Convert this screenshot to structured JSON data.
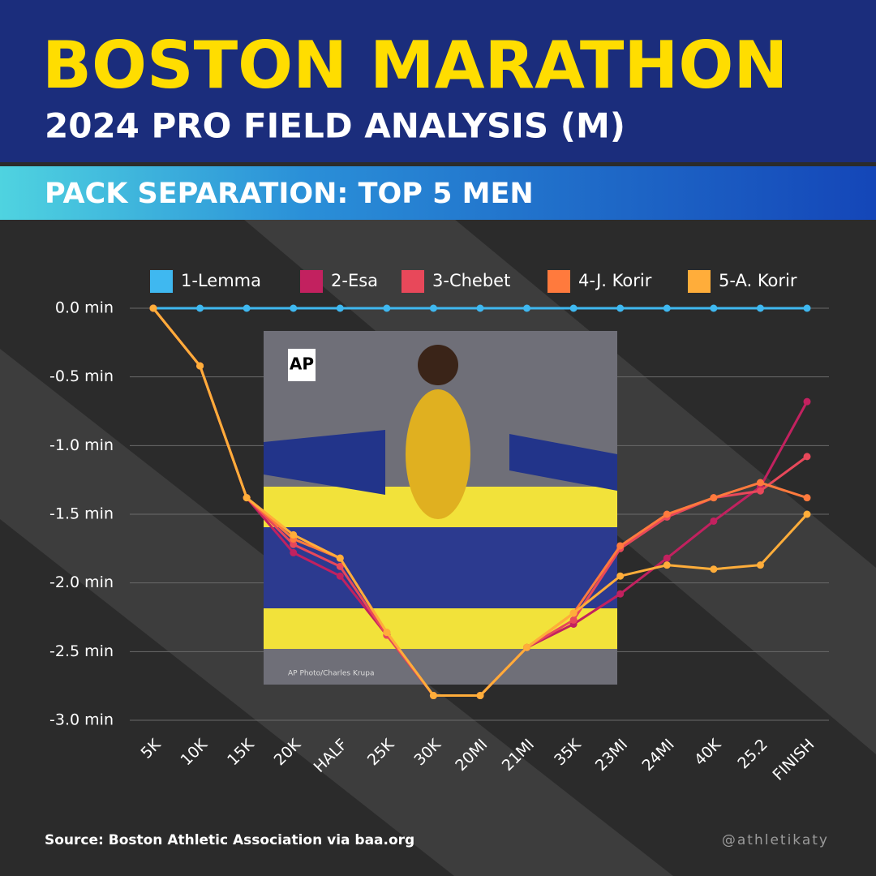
{
  "header": {
    "title": "BOSTON MARATHON",
    "subtitle": "2024 PRO FIELD ANALYSIS (M)",
    "banner": "PACK SEPARATION: TOP 5 MEN"
  },
  "photo": {
    "badge": "AP",
    "credit": "AP Photo/Charles Krupa"
  },
  "footer": {
    "source": "Source: Boston Athletic Association via baa.org",
    "handle": "@athletikaty"
  },
  "chart_data": {
    "type": "line",
    "categories": [
      "5K",
      "10K",
      "15K",
      "20K",
      "HALF",
      "25K",
      "30K",
      "20MI",
      "21MI",
      "35K",
      "23MI",
      "24MI",
      "40K",
      "25.2",
      "FINISH"
    ],
    "series": [
      {
        "name": "1-Lemma",
        "color": "#3fb8f0",
        "values": [
          0,
          0,
          0,
          0,
          0,
          0,
          0,
          0,
          0,
          0,
          0,
          0,
          0,
          0,
          0
        ]
      },
      {
        "name": "2-Esa",
        "color": "#c2215f",
        "values": [
          0,
          -0.42,
          -1.38,
          -1.78,
          -1.95,
          -2.38,
          -2.82,
          -2.82,
          -2.47,
          -2.3,
          -2.08,
          -1.82,
          -1.55,
          -1.3,
          -0.68
        ]
      },
      {
        "name": "3-Chebet",
        "color": "#e8485a",
        "values": [
          0,
          -0.42,
          -1.38,
          -1.72,
          -1.88,
          -2.38,
          -2.82,
          -2.82,
          -2.47,
          -2.27,
          -1.75,
          -1.52,
          -1.38,
          -1.33,
          -1.08
        ]
      },
      {
        "name": "4-J. Korir",
        "color": "#ff7a3d",
        "values": [
          0,
          -0.42,
          -1.38,
          -1.68,
          -1.82,
          -2.36,
          -2.82,
          -2.82,
          -2.47,
          -2.22,
          -1.73,
          -1.5,
          -1.38,
          -1.27,
          -1.38
        ]
      },
      {
        "name": "5-A. Korir",
        "color": "#ffad3a",
        "values": [
          0,
          -0.42,
          -1.38,
          -1.65,
          -1.82,
          -2.36,
          -2.82,
          -2.82,
          -2.47,
          -2.22,
          -1.95,
          -1.87,
          -1.9,
          -1.87,
          -1.5
        ]
      }
    ],
    "ylim": [
      -3,
      0
    ],
    "yticks": [
      {
        "value": 0,
        "label": "0.0 min"
      },
      {
        "value": -0.5,
        "label": "-0.5 min"
      },
      {
        "value": -1,
        "label": "-1.0 min"
      },
      {
        "value": -1.5,
        "label": "-1.5 min"
      },
      {
        "value": -2,
        "label": "-2.0 min"
      },
      {
        "value": -2.5,
        "label": "-2.5 min"
      },
      {
        "value": -3,
        "label": "-3.0 min"
      }
    ],
    "grid": true,
    "legend": "top"
  }
}
